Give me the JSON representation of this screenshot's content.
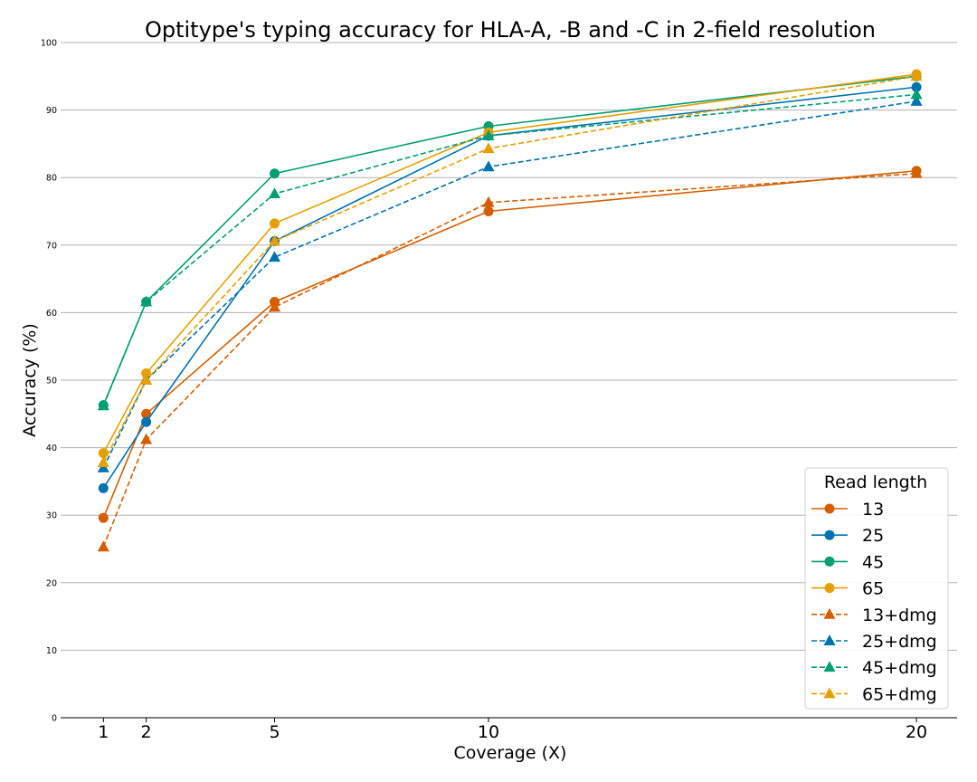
{
  "chart_data": {
    "type": "line",
    "title": "Optitype's typing accuracy for HLA-A, -B and -C in 2-field resolution",
    "xlabel": "Coverage (X)",
    "ylabel": "Accuracy (%)",
    "x": [
      1,
      2,
      5,
      10,
      20
    ],
    "xticks": [
      "1",
      "2",
      "5",
      "10",
      "20"
    ],
    "xlim": [
      0.0,
      20.95
    ],
    "ylim": [
      0,
      100
    ],
    "yticks": [
      "0",
      "10",
      "20",
      "30",
      "40",
      "50",
      "60",
      "70",
      "80",
      "90",
      "100"
    ],
    "grid": "horizontal",
    "legend": {
      "title": "Read length",
      "placement": "bottom-right"
    },
    "series": [
      {
        "name": "13",
        "values": [
          29.6,
          45.0,
          61.6,
          75.0,
          81.0
        ],
        "color": "#d55e00",
        "style": "solid",
        "marker": "circle"
      },
      {
        "name": "25",
        "values": [
          34.0,
          43.8,
          70.6,
          86.2,
          93.4
        ],
        "color": "#0072b2",
        "style": "solid",
        "marker": "circle"
      },
      {
        "name": "45",
        "values": [
          46.3,
          61.6,
          80.6,
          87.6,
          95.0
        ],
        "color": "#009e73",
        "style": "solid",
        "marker": "circle"
      },
      {
        "name": "65",
        "values": [
          39.2,
          51.0,
          73.2,
          86.7,
          95.3
        ],
        "color": "#e69f00",
        "style": "solid",
        "marker": "circle"
      },
      {
        "name": "13+dmg",
        "values": [
          25.3,
          41.2,
          60.8,
          76.3,
          80.6
        ],
        "color": "#d55e00",
        "style": "dashed",
        "marker": "triangle"
      },
      {
        "name": "25+dmg",
        "values": [
          37.0,
          50.0,
          68.2,
          81.6,
          91.3
        ],
        "color": "#0072b2",
        "style": "dashed",
        "marker": "triangle"
      },
      {
        "name": "45+dmg",
        "values": [
          46.2,
          61.6,
          77.6,
          86.2,
          92.3
        ],
        "color": "#009e73",
        "style": "dashed",
        "marker": "triangle"
      },
      {
        "name": "65+dmg",
        "values": [
          37.8,
          50.0,
          70.6,
          84.3,
          95.0
        ],
        "color": "#e69f00",
        "style": "dashed",
        "marker": "triangle"
      }
    ]
  }
}
